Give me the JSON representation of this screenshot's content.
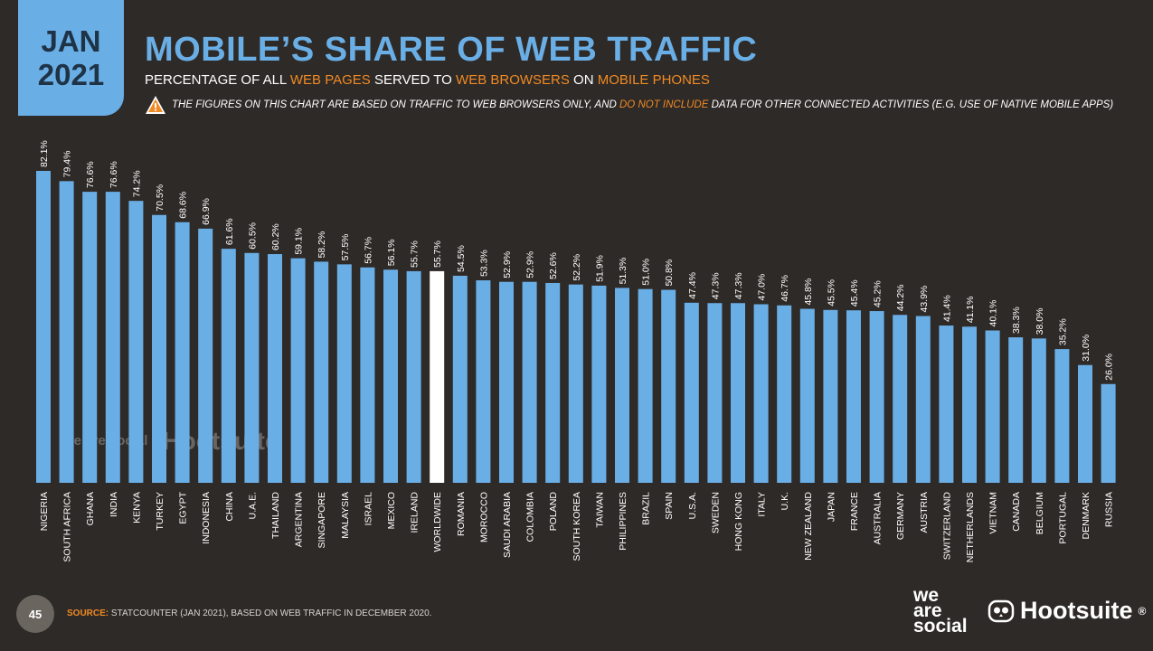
{
  "header": {
    "date_month": "JAN",
    "date_year": "2021",
    "title": "MOBILE’S SHARE OF WEB TRAFFIC",
    "subtitle_parts": [
      "PERCENTAGE OF ALL ",
      "WEB PAGES",
      " SERVED TO ",
      "WEB BROWSERS",
      " ON ",
      "MOBILE PHONES"
    ],
    "note_parts": [
      "THE FIGURES ON THIS CHART ARE BASED ON TRAFFIC TO WEB BROWSERS ONLY, AND ",
      "DO NOT INCLUDE",
      " DATA FOR OTHER CONNECTED ACTIVITIES (E.G. USE OF NATIVE MOBILE APPS)"
    ],
    "note_icon": "warning-triangle-icon"
  },
  "chart_data": {
    "type": "bar",
    "categories": [
      "NIGERIA",
      "SOUTH AFRICA",
      "GHANA",
      "INDIA",
      "KENYA",
      "TURKEY",
      "EGYPT",
      "INDONESIA",
      "CHINA",
      "U.A.E.",
      "THAILAND",
      "ARGENTINA",
      "SINGAPORE",
      "MALAYSIA",
      "ISRAEL",
      "MEXICO",
      "IRELAND",
      "WORLDWIDE",
      "ROMANIA",
      "MOROCCO",
      "SAUDI ARABIA",
      "COLOMBIA",
      "POLAND",
      "SOUTH KOREA",
      "TAIWAN",
      "PHILIPPINES",
      "BRAZIL",
      "SPAIN",
      "U.S.A.",
      "SWEDEN",
      "HONG KONG",
      "ITALY",
      "U.K.",
      "NEW ZEALAND",
      "JAPAN",
      "FRANCE",
      "AUSTRALIA",
      "GERMANY",
      "AUSTRIA",
      "SWITZERLAND",
      "NETHERLANDS",
      "VIETNAM",
      "CANADA",
      "BELGIUM",
      "PORTUGAL",
      "DENMARK",
      "RUSSIA"
    ],
    "values": [
      82.1,
      79.4,
      76.6,
      76.6,
      74.2,
      70.5,
      68.6,
      66.9,
      61.6,
      60.5,
      60.2,
      59.1,
      58.2,
      57.5,
      56.7,
      56.1,
      55.7,
      55.7,
      54.5,
      53.3,
      52.9,
      52.9,
      52.6,
      52.2,
      51.9,
      51.3,
      51.0,
      50.8,
      47.4,
      47.3,
      47.3,
      47.0,
      46.7,
      45.8,
      45.5,
      45.4,
      45.2,
      44.2,
      43.9,
      41.4,
      41.1,
      40.1,
      38.3,
      38.0,
      35.2,
      31.0,
      26.0
    ],
    "value_labels": [
      "82.1%",
      "79.4%",
      "76.6%",
      "76.6%",
      "74.2%",
      "70.5%",
      "68.6%",
      "66.9%",
      "61.6%",
      "60.5%",
      "60.2%",
      "59.1%",
      "58.2%",
      "57.5%",
      "56.7%",
      "56.1%",
      "55.7%",
      "55.7%",
      "54.5%",
      "53.3%",
      "52.9%",
      "52.9%",
      "52.6%",
      "52.2%",
      "51.9%",
      "51.3%",
      "51.0%",
      "50.8%",
      "47.4%",
      "47.3%",
      "47.3%",
      "47.0%",
      "46.7%",
      "45.8%",
      "45.5%",
      "45.4%",
      "45.2%",
      "44.2%",
      "43.9%",
      "41.4%",
      "41.1%",
      "40.1%",
      "38.3%",
      "38.0%",
      "35.2%",
      "31.0%",
      "26.0%"
    ],
    "highlight_category": "WORLDWIDE",
    "ylim": [
      0,
      82.1
    ],
    "colors": {
      "bar": "#6aaee6",
      "highlight": "#ffffff",
      "label": "#ffffff"
    },
    "grid": false
  },
  "watermark": {
    "brand_a": "we are social",
    "brand_b": "Hootsuite"
  },
  "footer": {
    "page_number": "45",
    "source_label": "SOURCE:",
    "source_text": " STATCOUNTER (JAN 2021), BASED ON WEB TRAFFIC IN DECEMBER 2020.",
    "logo_wearesocial": [
      "we",
      "are",
      "social"
    ],
    "logo_hootsuite": "Hootsuite",
    "logo_hootsuite_mark": "®"
  },
  "theme": {
    "background": "#2e2a27",
    "accent_blue": "#6aaee6",
    "accent_orange": "#f08a24"
  }
}
